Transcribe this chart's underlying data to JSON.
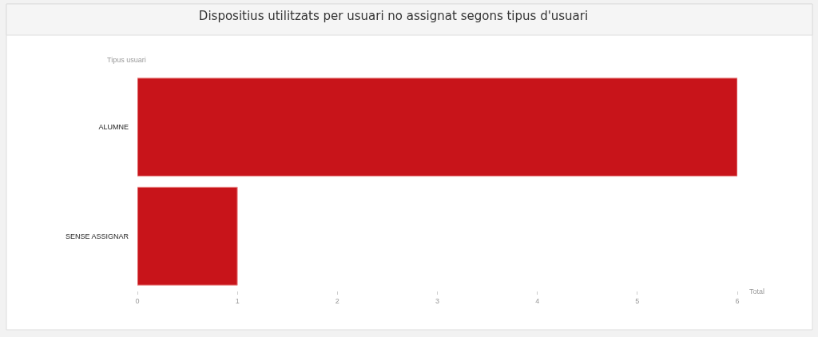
{
  "chart_data": {
    "type": "bar",
    "orientation": "horizontal",
    "title": "Dispositius utilitzats per usuari no assignat segons tipus d'usuari",
    "xlabel": "Total",
    "ylabel": "Tipus usuari",
    "categories": [
      "ALUMNE",
      "SENSE ASSIGNAR"
    ],
    "values": [
      6,
      1
    ],
    "color": "#c8141a",
    "xlim": [
      0,
      6
    ],
    "xticks": [
      0,
      1,
      2,
      3,
      4,
      5,
      6
    ],
    "grid": false,
    "legend": false
  }
}
